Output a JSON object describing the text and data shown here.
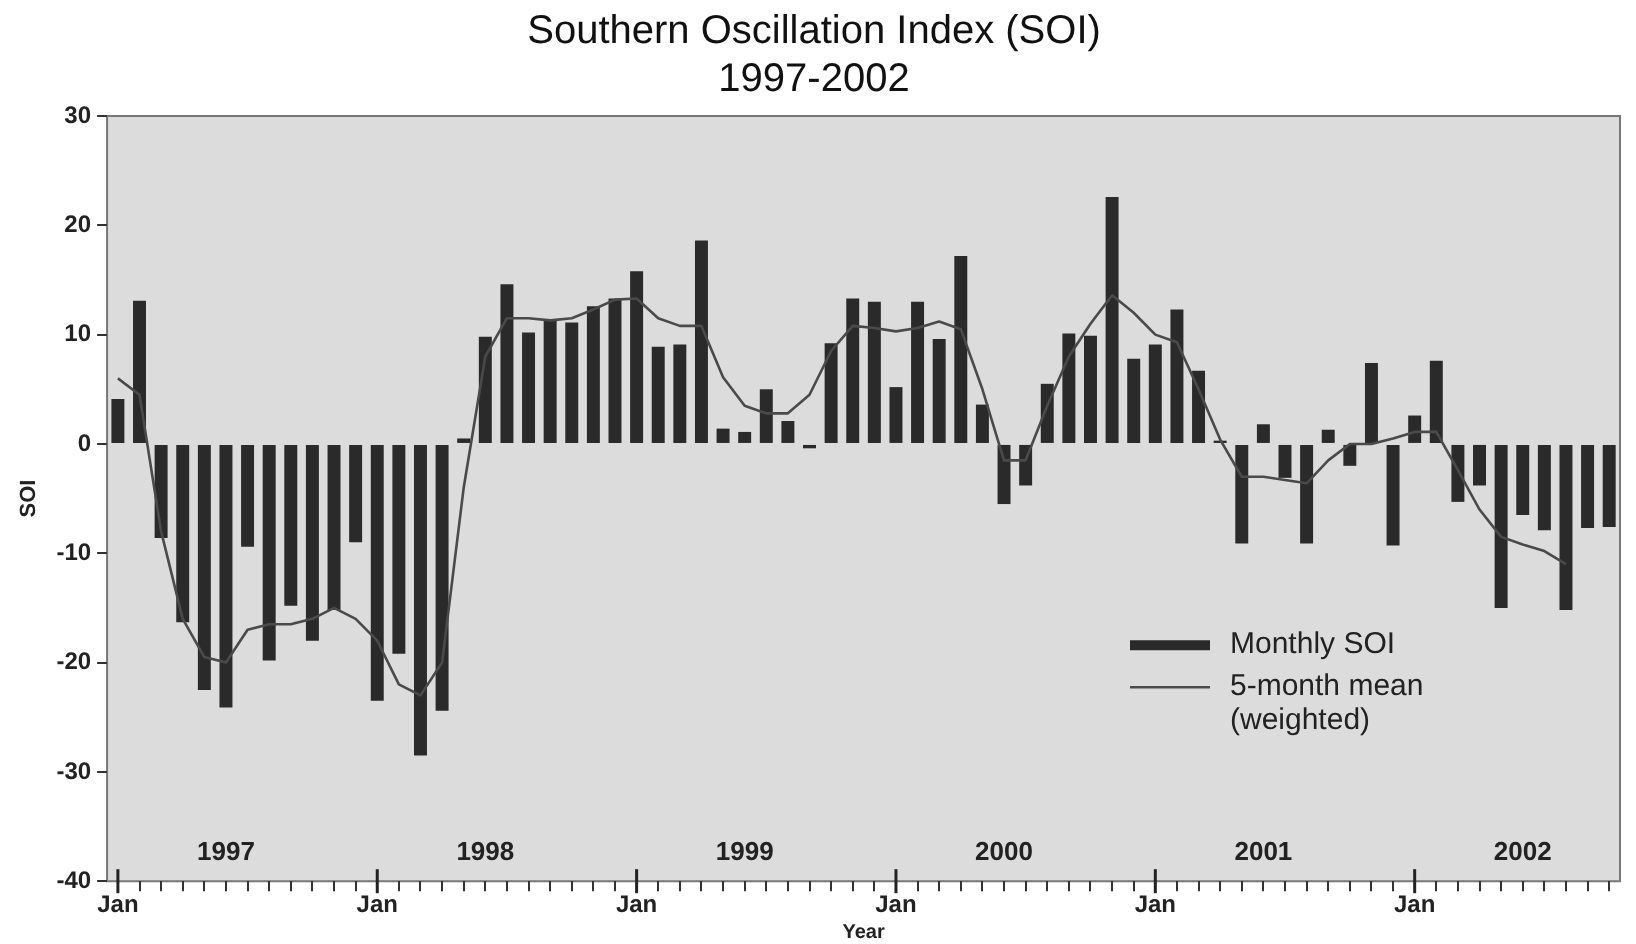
{
  "chart_data": {
    "type": "bar",
    "title": "Southern Oscillation Index (SOI)",
    "subtitle": "1997-2002",
    "xlabel": "Year",
    "ylabel": "SOI",
    "categories": [
      "Jan",
      null,
      null,
      null,
      null,
      null,
      null,
      null,
      null,
      null,
      null,
      null,
      "Jan",
      null,
      null,
      null,
      null,
      null,
      null,
      null,
      null,
      null,
      null,
      null,
      "Jan",
      null,
      null,
      null,
      null,
      null,
      null,
      null,
      null,
      null,
      null,
      null,
      "Jan",
      null,
      null,
      null,
      null,
      null,
      null,
      null,
      null,
      null,
      null,
      null,
      "Jan",
      null,
      null,
      null,
      null,
      null,
      null,
      null,
      null,
      null,
      null,
      null,
      "Jan",
      null,
      null,
      null,
      null,
      null,
      null,
      null,
      null,
      null
    ],
    "series": [
      {
        "name": "Monthly SOI",
        "color": "#2a2a2a",
        "values": [
          4.1,
          13.1,
          -8.6,
          -16.3,
          -22.5,
          -24.1,
          -9.4,
          -19.8,
          -14.8,
          -18.0,
          -15.2,
          -9.0,
          -23.5,
          -19.2,
          -28.5,
          -24.4,
          0.5,
          9.8,
          14.6,
          10.2,
          11.3,
          11.1,
          12.6,
          13.3,
          15.8,
          8.9,
          9.1,
          18.6,
          1.4,
          1.1,
          5.0,
          2.1,
          -0.4,
          9.2,
          13.3,
          13.0,
          5.2,
          13.0,
          9.6,
          17.2,
          3.6,
          -5.5,
          -3.8,
          5.5,
          10.1,
          9.9,
          22.6,
          7.8,
          9.1,
          12.3,
          6.7,
          0.3,
          -9.1,
          1.8,
          -3.1,
          -9.1,
          1.3,
          -2.0,
          7.4,
          -9.3,
          2.6,
          7.6,
          -5.3,
          -3.8,
          -15.0,
          -6.5,
          -7.9,
          -15.2,
          -7.7,
          -7.6
        ]
      },
      {
        "name": "5-month mean (weighted)",
        "type": "line",
        "color": "#4a4a4a",
        "values": [
          6.0,
          4.5,
          -8.0,
          -16.0,
          -19.5,
          -20.0,
          -17.0,
          -16.5,
          -16.5,
          -16.0,
          -15.0,
          -16.0,
          -18.0,
          -22.0,
          -23.0,
          -20.0,
          -4.0,
          8.0,
          11.5,
          11.5,
          11.3,
          11.5,
          12.3,
          13.2,
          13.3,
          11.5,
          10.8,
          10.8,
          6.1,
          3.5,
          2.8,
          2.8,
          4.5,
          8.5,
          10.8,
          10.6,
          10.3,
          10.6,
          11.2,
          10.5,
          5.0,
          -1.5,
          -1.5,
          3.5,
          8.0,
          11.0,
          13.6,
          12.0,
          10.0,
          9.3,
          5.0,
          0.4,
          -3.0,
          -3.0,
          -3.3,
          -3.6,
          -1.5,
          0.0,
          0.0,
          0.5,
          1.1,
          1.1,
          -2.4,
          -6.0,
          -8.5,
          -9.2,
          -9.8,
          -11.0,
          null,
          null
        ]
      }
    ],
    "ylim": [
      -40,
      30
    ],
    "yticks": [
      -40,
      -30,
      -20,
      -10,
      0,
      10,
      20,
      30
    ],
    "grid": false,
    "legend": "bottom right",
    "marker": "none",
    "line_style": "solid",
    "annotations": [
      "1997",
      "1998",
      "1999",
      "2000",
      "2001",
      "2002"
    ]
  }
}
